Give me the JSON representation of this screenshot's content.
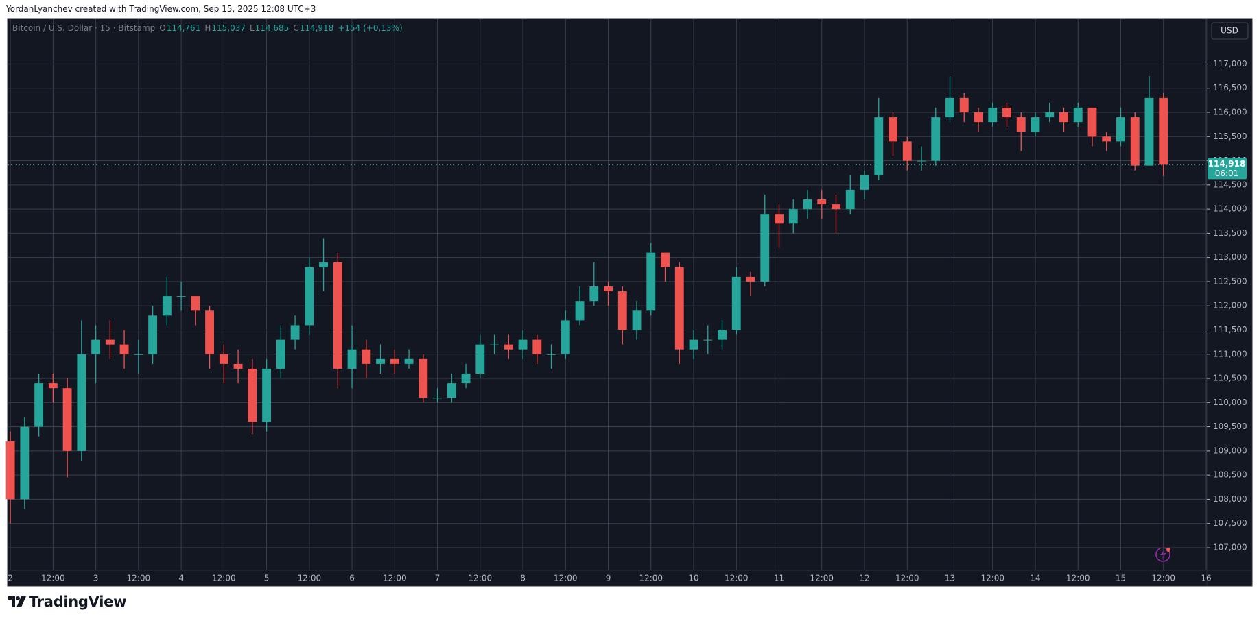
{
  "header": {
    "credit": "YordanLyanchev created with TradingView.com, Sep 15, 2025 12:08 UTC+3"
  },
  "footer": {
    "brand": "TradingView"
  },
  "chart_data": {
    "type": "candlestick",
    "symbol": "Bitcoin / U.S. Dollar · 15 · Bitstamp",
    "ohlc_legend": [
      {
        "key": "O",
        "text": "114,761"
      },
      {
        "key": "H",
        "text": "115,037"
      },
      {
        "key": "L",
        "text": "114,685"
      },
      {
        "key": "C",
        "text": "114,918"
      }
    ],
    "change": "+154 (+0.13%)",
    "currency": "USD",
    "last_price": {
      "value": 114918,
      "label": "114,918"
    },
    "countdown": "06:01",
    "up_color": "#26a69a",
    "down_color": "#ef5350",
    "grid": true,
    "xlim": [
      -0.6,
      336.2
    ],
    "ylim": [
      106532,
      117928
    ],
    "xticks": [
      {
        "value": 0,
        "label": "2"
      },
      {
        "value": 12,
        "label": "12:00"
      },
      {
        "value": 24,
        "label": "3"
      },
      {
        "value": 36,
        "label": "12:00"
      },
      {
        "value": 48,
        "label": "4"
      },
      {
        "value": 60,
        "label": "12:00"
      },
      {
        "value": 72,
        "label": "5"
      },
      {
        "value": 84,
        "label": "12:00"
      },
      {
        "value": 96,
        "label": "6"
      },
      {
        "value": 108,
        "label": "12:00"
      },
      {
        "value": 120,
        "label": "7"
      },
      {
        "value": 132,
        "label": "12:00"
      },
      {
        "value": 144,
        "label": "8"
      },
      {
        "value": 156,
        "label": "12:00"
      },
      {
        "value": 168,
        "label": "9"
      },
      {
        "value": 180,
        "label": "12:00"
      },
      {
        "value": 192,
        "label": "10"
      },
      {
        "value": 204,
        "label": "12:00"
      },
      {
        "value": 216,
        "label": "11"
      },
      {
        "value": 228,
        "label": "12:00"
      },
      {
        "value": 240,
        "label": "12"
      },
      {
        "value": 252,
        "label": "12:00"
      },
      {
        "value": 264,
        "label": "13"
      },
      {
        "value": 276,
        "label": "12:00"
      },
      {
        "value": 288,
        "label": "14"
      },
      {
        "value": 300,
        "label": "12:00"
      },
      {
        "value": 312,
        "label": "15"
      },
      {
        "value": 324,
        "label": "12:00"
      },
      {
        "value": 336,
        "label": "16"
      }
    ],
    "yticks": [
      {
        "value": 107000,
        "label": "107,000"
      },
      {
        "value": 107500,
        "label": "107,500"
      },
      {
        "value": 108000,
        "label": "108,000"
      },
      {
        "value": 108500,
        "label": "108,500"
      },
      {
        "value": 109000,
        "label": "109,000"
      },
      {
        "value": 109500,
        "label": "109,500"
      },
      {
        "value": 110000,
        "label": "110,000"
      },
      {
        "value": 110500,
        "label": "110,500"
      },
      {
        "value": 111000,
        "label": "111,000"
      },
      {
        "value": 111500,
        "label": "111,500"
      },
      {
        "value": 112000,
        "label": "112,000"
      },
      {
        "value": 112500,
        "label": "112,500"
      },
      {
        "value": 113000,
        "label": "113,000"
      },
      {
        "value": 113500,
        "label": "113,500"
      },
      {
        "value": 114000,
        "label": "114,000"
      },
      {
        "value": 114500,
        "label": "114,500"
      },
      {
        "value": 115000,
        "label": "115,000"
      },
      {
        "value": 115500,
        "label": "115,500"
      },
      {
        "value": 116000,
        "label": "116,000"
      },
      {
        "value": 116500,
        "label": "116,500"
      },
      {
        "value": 117000,
        "label": "117,000"
      }
    ],
    "x": [
      0,
      4,
      8,
      12,
      16,
      20,
      24,
      28,
      32,
      36,
      40,
      44,
      48,
      52,
      56,
      60,
      64,
      68,
      72,
      76,
      80,
      84,
      88,
      92,
      96,
      100,
      104,
      108,
      112,
      116,
      120,
      124,
      128,
      132,
      136,
      140,
      144,
      148,
      152,
      156,
      160,
      164,
      168,
      172,
      176,
      180,
      184,
      188,
      192,
      196,
      200,
      204,
      208,
      212,
      216,
      220,
      224,
      228,
      232,
      236,
      240,
      244,
      248,
      252,
      256,
      260,
      264,
      268,
      272,
      276,
      280,
      284,
      288,
      292,
      296,
      300,
      304,
      308,
      312,
      316,
      320,
      324
    ],
    "open": [
      109200,
      108000,
      109500,
      110400,
      110300,
      109000,
      111000,
      111300,
      111200,
      111000,
      111000,
      111800,
      112200,
      112200,
      111900,
      111000,
      110800,
      110700,
      109600,
      110700,
      111300,
      111600,
      112800,
      112900,
      110700,
      111100,
      110800,
      110900,
      110800,
      110900,
      110100,
      110100,
      110400,
      110600,
      111200,
      111200,
      111100,
      111300,
      111000,
      111000,
      111700,
      112100,
      112400,
      112300,
      111500,
      111900,
      113100,
      112800,
      111100,
      111300,
      111300,
      111500,
      112600,
      112500,
      113900,
      113700,
      114000,
      114200,
      114100,
      114000,
      114400,
      114700,
      115900,
      115400,
      115000,
      115000,
      115900,
      116300,
      116000,
      115800,
      116100,
      115900,
      115600,
      115900,
      116000,
      115800,
      116100,
      115500,
      115400,
      115900,
      114900,
      116300
    ],
    "high": [
      109400,
      109700,
      110600,
      110600,
      110500,
      111700,
      111600,
      111700,
      111500,
      111300,
      112000,
      112600,
      112500,
      112200,
      112000,
      111200,
      111100,
      110900,
      110900,
      111600,
      111800,
      113000,
      113400,
      113100,
      111600,
      111300,
      111200,
      111100,
      111100,
      111000,
      110300,
      110600,
      110800,
      111400,
      111400,
      111400,
      111500,
      111400,
      111200,
      111900,
      112400,
      112900,
      112500,
      112400,
      112100,
      113300,
      113100,
      112900,
      111500,
      111600,
      111700,
      112800,
      112700,
      114300,
      114100,
      114200,
      114400,
      114400,
      114300,
      114700,
      114800,
      116300,
      116000,
      115500,
      115300,
      116100,
      116750,
      116400,
      116100,
      116200,
      116200,
      116000,
      116000,
      116200,
      116100,
      116200,
      116100,
      115600,
      116100,
      116000,
      116750,
      116400
    ],
    "low": [
      107500,
      107800,
      109300,
      110000,
      108450,
      108800,
      110400,
      110900,
      110700,
      110600,
      110800,
      111600,
      111900,
      111600,
      110700,
      110400,
      110400,
      109350,
      109400,
      110500,
      111100,
      111400,
      112300,
      110300,
      110300,
      110500,
      110600,
      110600,
      110700,
      110000,
      110000,
      110000,
      110300,
      110500,
      111000,
      110900,
      110900,
      110800,
      110700,
      110900,
      111600,
      112000,
      112000,
      111200,
      111300,
      111800,
      112500,
      110800,
      110900,
      111000,
      111100,
      111400,
      112200,
      112400,
      113200,
      113500,
      113800,
      113800,
      113500,
      113900,
      114200,
      114600,
      115100,
      114800,
      114800,
      114900,
      115800,
      115800,
      115600,
      115700,
      115700,
      115200,
      115500,
      115800,
      115600,
      115700,
      115300,
      115200,
      115300,
      114800,
      114900,
      114685
    ],
    "close": [
      108000,
      109500,
      110400,
      110300,
      109000,
      111000,
      111300,
      111200,
      111000,
      111000,
      111800,
      112200,
      112200,
      111900,
      111000,
      110800,
      110700,
      109600,
      110700,
      111300,
      111600,
      112800,
      112900,
      110700,
      111100,
      110800,
      110900,
      110800,
      110900,
      110100,
      110100,
      110400,
      110600,
      111200,
      111200,
      111100,
      111300,
      111000,
      111000,
      111700,
      112100,
      112400,
      112300,
      111500,
      111900,
      113100,
      112800,
      111100,
      111300,
      111300,
      111500,
      112600,
      112500,
      113900,
      113700,
      114000,
      114200,
      114100,
      114000,
      114400,
      114700,
      115900,
      115400,
      115000,
      115000,
      115900,
      116300,
      116000,
      115800,
      116100,
      115900,
      115600,
      115900,
      116000,
      115800,
      116100,
      115500,
      115400,
      115900,
      114900,
      116300,
      114918
    ]
  }
}
